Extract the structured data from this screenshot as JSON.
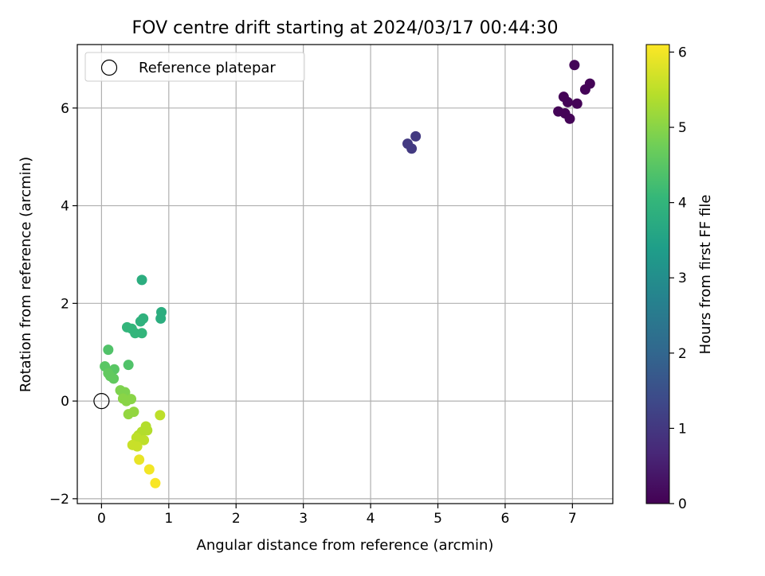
{
  "chart_data": {
    "type": "scatter",
    "title": "FOV centre drift starting at 2024/03/17 00:44:30",
    "xlabel": "Angular distance from reference (arcmin)",
    "ylabel": "Rotation from reference (arcmin)",
    "xlim": [
      -0.36,
      7.6
    ],
    "ylim": [
      -2.1,
      7.3
    ],
    "xticks": [
      0,
      1,
      2,
      3,
      4,
      5,
      6,
      7
    ],
    "yticks": [
      -2,
      0,
      2,
      4,
      6
    ],
    "grid": true,
    "legend": {
      "position": "top-left",
      "entries": [
        "Reference platepar"
      ]
    },
    "reference_point": {
      "x": 0,
      "y": 0
    },
    "colorbar": {
      "label": "Hours from first FF file",
      "range": [
        0,
        6.1
      ],
      "ticks": [
        0,
        1,
        2,
        3,
        4,
        5,
        6
      ],
      "colormap": [
        "#440154",
        "#482878",
        "#3e4989",
        "#31688e",
        "#26828e",
        "#1f9e89",
        "#35b779",
        "#6ece58",
        "#b5de2b",
        "#fde725"
      ]
    },
    "points": [
      {
        "x": 7.03,
        "y": 6.88,
        "h": 0.05
      },
      {
        "x": 7.26,
        "y": 6.5,
        "h": 0.05
      },
      {
        "x": 7.19,
        "y": 6.38,
        "h": 0.05
      },
      {
        "x": 6.87,
        "y": 6.23,
        "h": 0.05
      },
      {
        "x": 6.93,
        "y": 6.12,
        "h": 0.05
      },
      {
        "x": 7.07,
        "y": 6.09,
        "h": 0.05
      },
      {
        "x": 6.79,
        "y": 5.93,
        "h": 0.05
      },
      {
        "x": 6.89,
        "y": 5.89,
        "h": 0.05
      },
      {
        "x": 6.96,
        "y": 5.78,
        "h": 0.05
      },
      {
        "x": 4.67,
        "y": 5.42,
        "h": 1.05
      },
      {
        "x": 4.55,
        "y": 5.27,
        "h": 1.05
      },
      {
        "x": 4.61,
        "y": 5.17,
        "h": 1.05
      },
      {
        "x": 0.6,
        "y": 2.48,
        "h": 3.8
      },
      {
        "x": 0.89,
        "y": 1.82,
        "h": 3.8
      },
      {
        "x": 0.88,
        "y": 1.69,
        "h": 3.8
      },
      {
        "x": 0.62,
        "y": 1.69,
        "h": 3.9
      },
      {
        "x": 0.58,
        "y": 1.63,
        "h": 3.9
      },
      {
        "x": 0.38,
        "y": 1.51,
        "h": 4.0
      },
      {
        "x": 0.45,
        "y": 1.48,
        "h": 4.0
      },
      {
        "x": 0.5,
        "y": 1.39,
        "h": 4.0
      },
      {
        "x": 0.6,
        "y": 1.39,
        "h": 4.0
      },
      {
        "x": 0.1,
        "y": 1.05,
        "h": 4.4
      },
      {
        "x": 0.4,
        "y": 0.74,
        "h": 4.4
      },
      {
        "x": 0.05,
        "y": 0.71,
        "h": 4.5
      },
      {
        "x": 0.19,
        "y": 0.65,
        "h": 4.5
      },
      {
        "x": 0.1,
        "y": 0.57,
        "h": 4.6
      },
      {
        "x": 0.13,
        "y": 0.51,
        "h": 4.6
      },
      {
        "x": 0.18,
        "y": 0.46,
        "h": 4.6
      },
      {
        "x": 0.28,
        "y": 0.22,
        "h": 4.9
      },
      {
        "x": 0.35,
        "y": 0.18,
        "h": 4.9
      },
      {
        "x": 0.32,
        "y": 0.05,
        "h": 5.0
      },
      {
        "x": 0.44,
        "y": 0.04,
        "h": 5.0
      },
      {
        "x": 0.37,
        "y": 0.0,
        "h": 5.0
      },
      {
        "x": 0.48,
        "y": -0.22,
        "h": 5.1
      },
      {
        "x": 0.4,
        "y": -0.27,
        "h": 5.1
      },
      {
        "x": 0.87,
        "y": -0.29,
        "h": 5.5
      },
      {
        "x": 0.66,
        "y": -0.52,
        "h": 5.4
      },
      {
        "x": 0.6,
        "y": -0.63,
        "h": 5.4
      },
      {
        "x": 0.68,
        "y": -0.6,
        "h": 5.4
      },
      {
        "x": 0.55,
        "y": -0.7,
        "h": 5.4
      },
      {
        "x": 0.52,
        "y": -0.75,
        "h": 5.5
      },
      {
        "x": 0.63,
        "y": -0.8,
        "h": 5.5
      },
      {
        "x": 0.46,
        "y": -0.9,
        "h": 5.6
      },
      {
        "x": 0.53,
        "y": -0.93,
        "h": 5.6
      },
      {
        "x": 0.56,
        "y": -1.2,
        "h": 5.9
      },
      {
        "x": 0.71,
        "y": -1.4,
        "h": 6.0
      },
      {
        "x": 0.8,
        "y": -1.68,
        "h": 6.05
      }
    ]
  }
}
